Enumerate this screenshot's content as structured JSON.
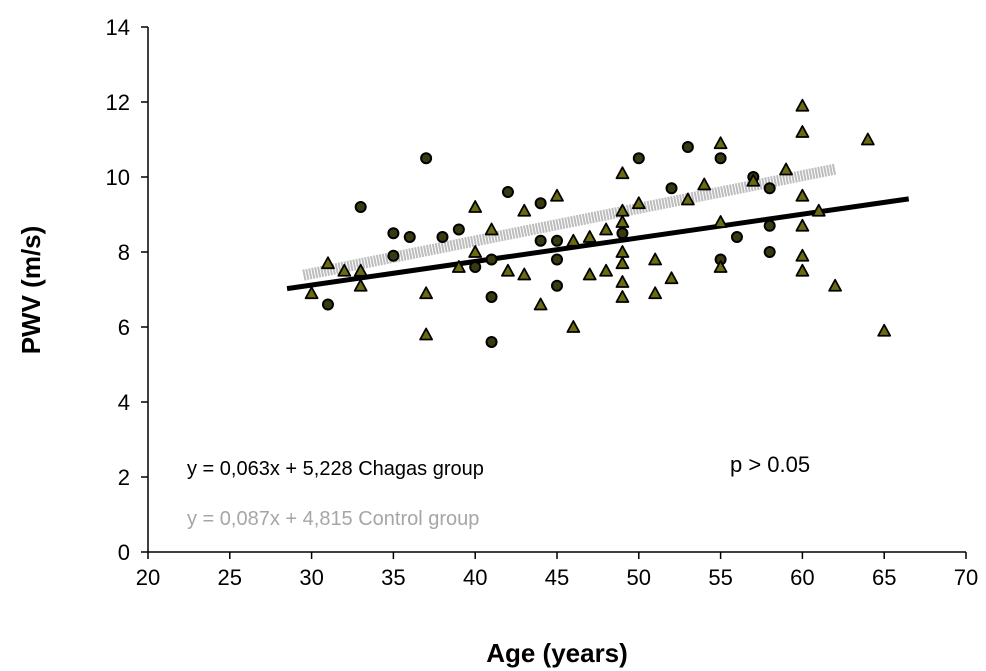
{
  "chart_data": {
    "type": "scatter",
    "xlabel": "Age (years)",
    "ylabel": "PWV (m/s)",
    "xlim": [
      20,
      70
    ],
    "ylim": [
      0,
      14
    ],
    "x_ticks": [
      20,
      25,
      30,
      35,
      40,
      45,
      50,
      55,
      60,
      65,
      70
    ],
    "y_ticks": [
      0,
      2,
      4,
      6,
      8,
      10,
      12,
      14
    ],
    "grid": false,
    "series": [
      {
        "marker": "circle",
        "color": "#1f1f00",
        "points": [
          [
            31,
            6.6
          ],
          [
            33,
            9.2
          ],
          [
            35,
            8.5
          ],
          [
            35,
            7.9
          ],
          [
            36,
            8.4
          ],
          [
            37,
            10.5
          ],
          [
            38,
            8.4
          ],
          [
            39,
            8.6
          ],
          [
            40,
            7.6
          ],
          [
            41,
            5.6
          ],
          [
            41,
            6.8
          ],
          [
            41,
            7.8
          ],
          [
            42,
            9.6
          ],
          [
            44,
            9.3
          ],
          [
            44,
            8.3
          ],
          [
            45,
            8.3
          ],
          [
            45,
            7.8
          ],
          [
            45,
            7.1
          ],
          [
            49,
            8.5
          ],
          [
            50,
            10.5
          ],
          [
            52,
            9.7
          ],
          [
            53,
            10.8
          ],
          [
            55,
            10.5
          ],
          [
            55,
            7.8
          ],
          [
            56,
            8.4
          ],
          [
            57,
            10.0
          ],
          [
            58,
            9.7
          ],
          [
            58,
            8.0
          ],
          [
            58,
            8.7
          ]
        ]
      },
      {
        "marker": "triangle",
        "color": "#6b6b10",
        "points": [
          [
            30,
            6.9
          ],
          [
            31,
            7.7
          ],
          [
            32,
            7.5
          ],
          [
            33,
            7.1
          ],
          [
            33,
            7.5
          ],
          [
            37,
            5.8
          ],
          [
            37,
            6.9
          ],
          [
            39,
            7.6
          ],
          [
            40,
            9.2
          ],
          [
            40,
            8.0
          ],
          [
            41,
            8.6
          ],
          [
            42,
            7.5
          ],
          [
            43,
            9.1
          ],
          [
            43,
            7.4
          ],
          [
            44,
            6.6
          ],
          [
            45,
            9.5
          ],
          [
            46,
            6.0
          ],
          [
            46,
            8.3
          ],
          [
            47,
            8.4
          ],
          [
            47,
            7.4
          ],
          [
            48,
            8.6
          ],
          [
            48,
            7.5
          ],
          [
            49,
            10.1
          ],
          [
            49,
            9.1
          ],
          [
            49,
            8.8
          ],
          [
            49,
            8.0
          ],
          [
            49,
            7.7
          ],
          [
            49,
            7.2
          ],
          [
            49,
            6.8
          ],
          [
            50,
            9.3
          ],
          [
            51,
            7.8
          ],
          [
            51,
            6.9
          ],
          [
            52,
            7.3
          ],
          [
            53,
            9.4
          ],
          [
            54,
            9.8
          ],
          [
            55,
            10.9
          ],
          [
            55,
            8.8
          ],
          [
            55,
            7.6
          ],
          [
            57,
            9.9
          ],
          [
            59,
            10.2
          ],
          [
            60,
            11.9
          ],
          [
            60,
            11.2
          ],
          [
            60,
            9.5
          ],
          [
            60,
            8.7
          ],
          [
            60,
            7.9
          ],
          [
            60,
            7.5
          ],
          [
            61,
            9.1
          ],
          [
            62,
            7.1
          ],
          [
            64,
            11.0
          ],
          [
            65,
            5.9
          ]
        ]
      }
    ],
    "trendlines": [
      {
        "group": "Chagas group",
        "slope": 0.063,
        "intercept": 5.228,
        "x_range": [
          28.5,
          66.5
        ],
        "color": "#000000",
        "style": "solid"
      },
      {
        "group": "Control group",
        "slope": 0.087,
        "intercept": 4.815,
        "x_range": [
          29.5,
          62
        ],
        "color": "#bdbdbd",
        "style": "dotted"
      }
    ],
    "annotations": {
      "chagas_eq": "y = 0,063x + 5,228  Chagas group",
      "control_eq": "y = 0,087x + 4,815  Control group",
      "p_value": "p > 0.05"
    }
  }
}
